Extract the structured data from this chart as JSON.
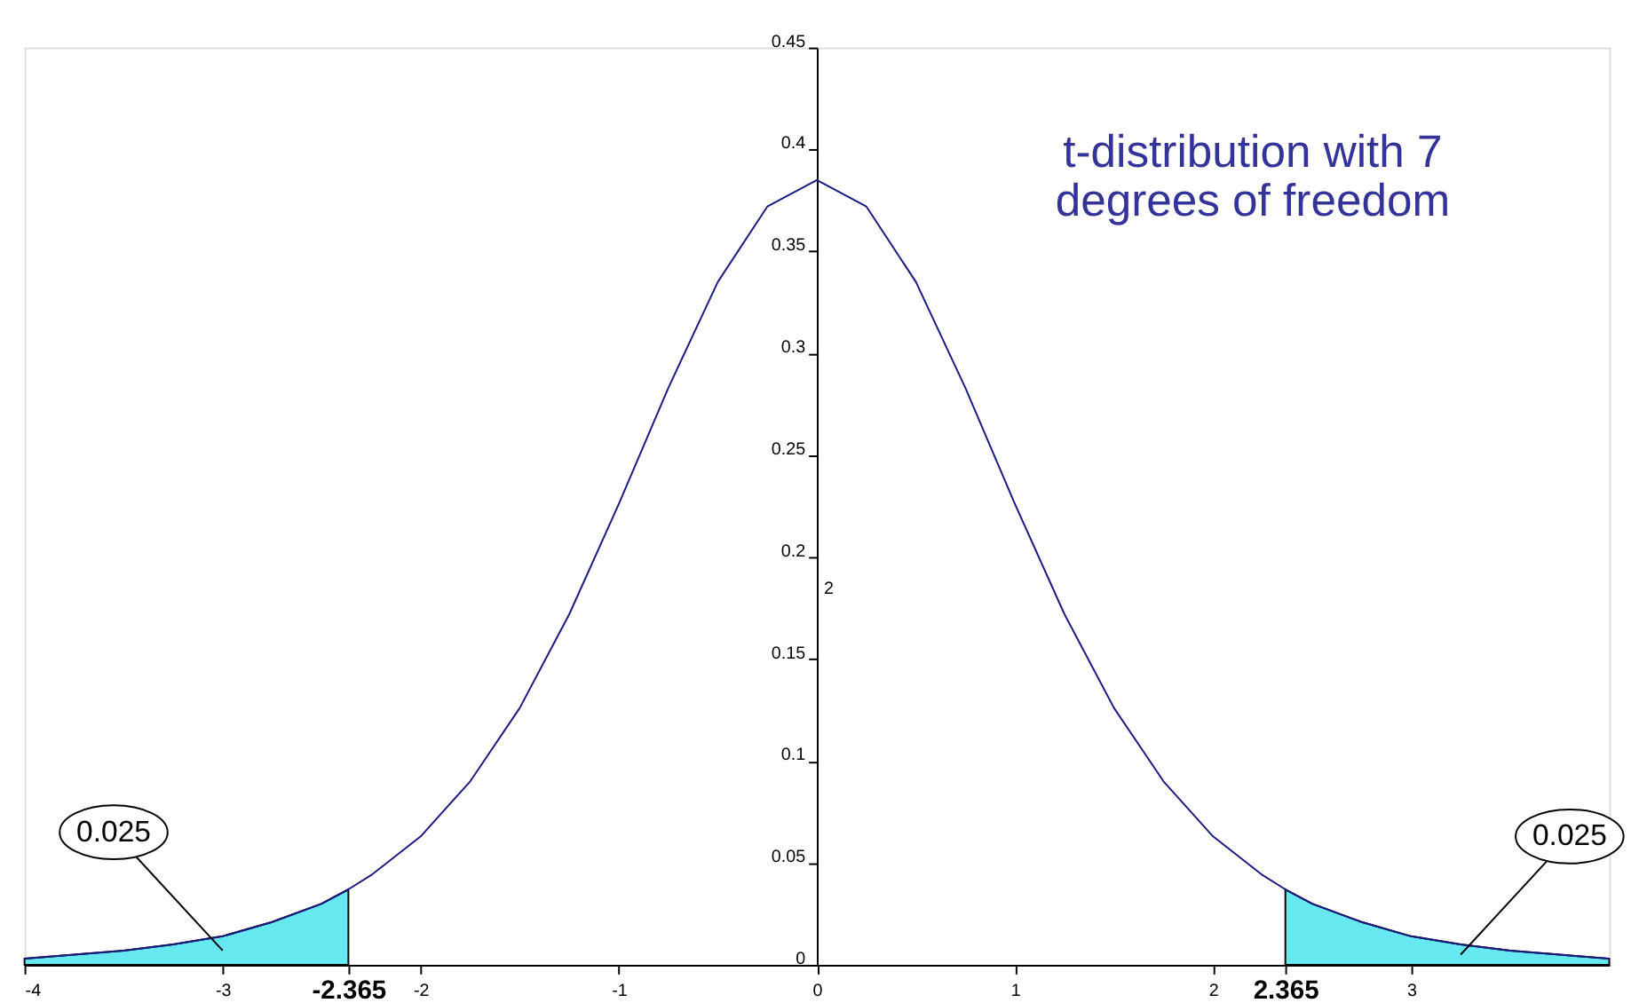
{
  "chart_data": {
    "type": "line",
    "title": "t-distribution with 7\ndegrees of freedom",
    "xlim": [
      -4,
      4
    ],
    "ylim": [
      0,
      0.45
    ],
    "xticks": [
      -4,
      -3,
      {
        "value": -2.365,
        "label": "-2.365"
      },
      -2,
      -1,
      0,
      1,
      2,
      {
        "value": 2.365,
        "label": "2.365"
      },
      3
    ],
    "yticks": [
      0,
      0.05,
      0.1,
      0.15,
      0.2,
      0.25,
      0.3,
      0.35,
      0.4,
      0.45
    ],
    "grid": false,
    "series": [
      {
        "color": "#1a1a80",
        "x": [
          -4,
          -3.75,
          -3.5,
          -3.25,
          -3,
          -2.75,
          -2.5,
          -2.365,
          -2.25,
          -2,
          -1.75,
          -1.5,
          -1.25,
          -1,
          -0.75,
          -0.5,
          -0.25,
          0,
          0.25,
          0.5,
          0.75,
          1,
          1.25,
          1.5,
          1.75,
          2,
          2.25,
          2.365,
          2.5,
          2.75,
          3,
          3.25,
          3.5,
          3.75,
          4
        ],
        "values": [
          0.003,
          0.005,
          0.007,
          0.01,
          0.014,
          0.021,
          0.03,
          0.037,
          0.044,
          0.063,
          0.09,
          0.126,
          0.172,
          0.226,
          0.283,
          0.335,
          0.372,
          0.385,
          0.372,
          0.335,
          0.283,
          0.226,
          0.172,
          0.126,
          0.09,
          0.063,
          0.044,
          0.037,
          0.03,
          0.021,
          0.014,
          0.01,
          0.007,
          0.005,
          0.003
        ]
      },
      {
        "type": "area",
        "color": "#66e8f0",
        "x": [
          -4,
          -3.75,
          -3.5,
          -3.25,
          -3,
          -2.75,
          -2.5,
          -2.365
        ],
        "values": [
          0.003,
          0.005,
          0.007,
          0.01,
          0.014,
          0.021,
          0.03,
          0.037
        ]
      },
      {
        "type": "area",
        "color": "#66e8f0",
        "x": [
          2.365,
          2.5,
          2.75,
          3,
          3.25,
          3.5,
          3.75,
          4
        ],
        "values": [
          0.037,
          0.03,
          0.021,
          0.014,
          0.01,
          0.007,
          0.005,
          0.003
        ]
      }
    ],
    "annotations": [
      "0.025",
      "0.025",
      "2"
    ]
  }
}
